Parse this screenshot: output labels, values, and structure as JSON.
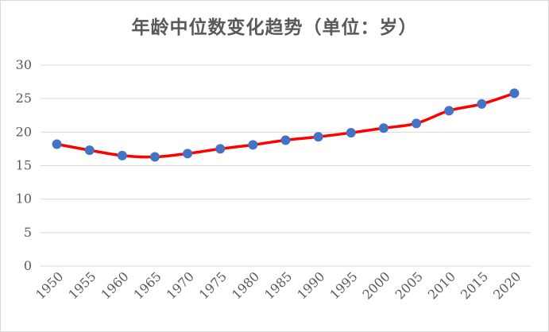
{
  "chart_data": {
    "type": "line",
    "title": "年龄中位数变化趋势（单位：岁）",
    "xlabel": "",
    "ylabel": "",
    "categories": [
      "1950",
      "1955",
      "1960",
      "1965",
      "1970",
      "1975",
      "1980",
      "1985",
      "1990",
      "1995",
      "2000",
      "2005",
      "2010",
      "2015",
      "2020"
    ],
    "series": [
      {
        "values": [
          18.2,
          17.3,
          16.5,
          16.3,
          16.8,
          17.5,
          18.1,
          18.8,
          19.3,
          19.9,
          20.6,
          21.3,
          23.2,
          24.2,
          25.8
        ]
      }
    ],
    "ylim": [
      0,
      30
    ],
    "yticks": [
      "0",
      "5",
      "10",
      "15",
      "20",
      "25",
      "30"
    ],
    "grid": true,
    "legend": "none",
    "colors": {
      "line": "#ff0000",
      "marker": "#4472c4",
      "grid": "#d9d9d9",
      "text": "#595959"
    }
  }
}
